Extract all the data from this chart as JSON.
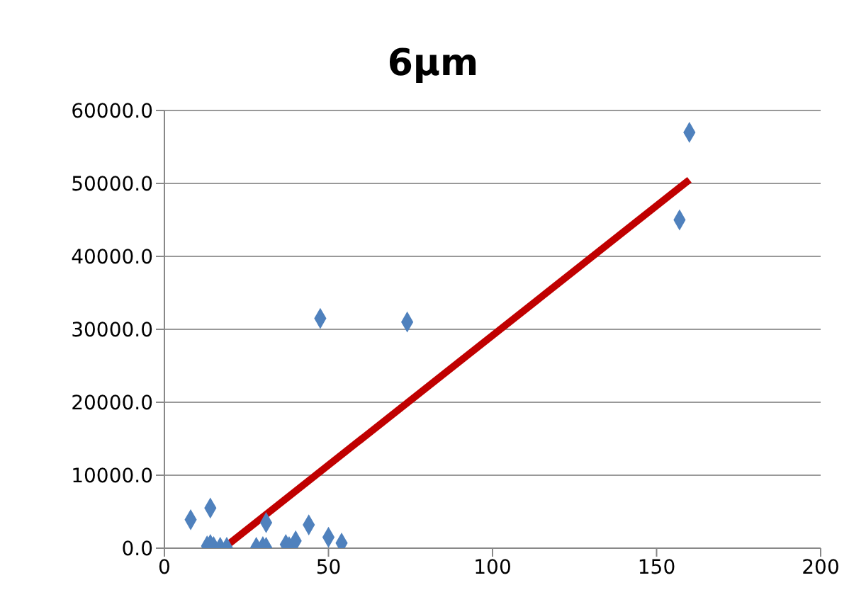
{
  "chart_data": {
    "type": "scatter",
    "title": "6µm",
    "xlim": [
      0,
      200
    ],
    "xticks": [
      0,
      50,
      100,
      150,
      200
    ],
    "ylim": [
      0,
      60000
    ],
    "yticks": [
      {
        "value": 0,
        "label": "0.0"
      },
      {
        "value": 10000,
        "label": "10000.0"
      },
      {
        "value": 20000,
        "label": "20000.0"
      },
      {
        "value": 30000,
        "label": "30000.0"
      },
      {
        "value": 40000,
        "label": "40000.0"
      },
      {
        "value": 50000,
        "label": "50000.0"
      },
      {
        "value": 60000,
        "label": "60000.0"
      }
    ],
    "grid": "y",
    "series": [
      {
        "color": "#4f81bd",
        "marker": "diamond",
        "x": [
          8,
          14,
          13,
          14,
          15,
          17,
          19,
          28,
          30,
          31,
          31,
          37,
          38,
          40,
          44,
          47.5,
          50,
          54,
          74,
          157,
          160
        ],
        "values": [
          3900,
          5500,
          300,
          500,
          200,
          100,
          100,
          100,
          200,
          100,
          3500,
          500,
          200,
          1000,
          3200,
          31500,
          1500,
          700,
          31000,
          45000,
          57000
        ]
      },
      {
        "type": "line",
        "color": "#c00000",
        "marker": "none",
        "x": [
          18,
          160
        ],
        "values": [
          0,
          50500
        ]
      }
    ]
  }
}
